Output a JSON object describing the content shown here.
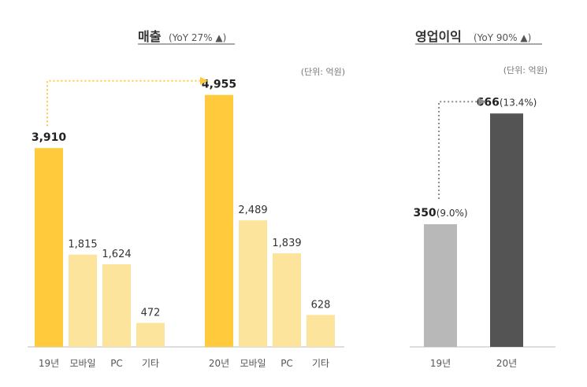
{
  "chart_data": [
    {
      "type": "bar",
      "title": "매출",
      "subtitle": "(YoY 27% ▲)",
      "unit": "(단위: 억원)",
      "groups": [
        {
          "categories": [
            "19년",
            "모바일",
            "PC",
            "기타"
          ],
          "values": [
            3910,
            1815,
            1624,
            472
          ],
          "labels": [
            "3,910",
            "1,815",
            "1,624",
            "472"
          ]
        },
        {
          "categories": [
            "20년",
            "모바일",
            "PC",
            "기타"
          ],
          "values": [
            4955,
            2489,
            1839,
            628
          ],
          "labels": [
            "4,955",
            "2,489",
            "1,839",
            "628"
          ]
        }
      ],
      "ylim": [
        0,
        5600
      ],
      "colors": {
        "total": "#FFCB3D",
        "part": "#FDE49C"
      }
    },
    {
      "type": "bar",
      "title": "영업이익",
      "subtitle": "(YoY 90% ▲)",
      "unit": "(단위: 억원)",
      "categories": [
        "19년",
        "20년"
      ],
      "values": [
        350,
        666
      ],
      "labels": [
        "350",
        "666"
      ],
      "margins": [
        "(9.0%)",
        "(13.4%)"
      ],
      "ylim": [
        0,
        790
      ],
      "colors": [
        "#B8B8B8",
        "#545454"
      ]
    }
  ]
}
